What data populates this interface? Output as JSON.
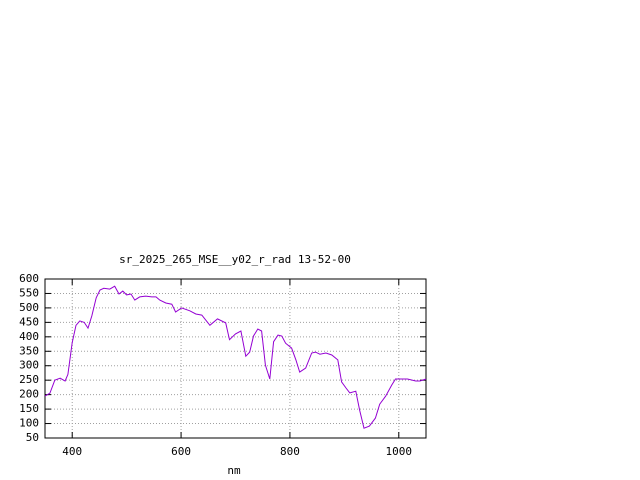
{
  "chart_data": {
    "type": "line",
    "title": "sr_2025_265_MSE__y02_r_rad 13-52-00",
    "x_label": "nm",
    "x": [
      350,
      359,
      368,
      378,
      387,
      392,
      400,
      407,
      414,
      422,
      429,
      436,
      444,
      451,
      458,
      469,
      478,
      486,
      493,
      500,
      508,
      515,
      524,
      535,
      546,
      554,
      561,
      572,
      583,
      590,
      601,
      616,
      627,
      638,
      653,
      667,
      682,
      689,
      700,
      710,
      719,
      726,
      733,
      741,
      748,
      755,
      763,
      770,
      778,
      785,
      792,
      803,
      811,
      818,
      829,
      840,
      847,
      855,
      866,
      877,
      888,
      895,
      903,
      910,
      921,
      928,
      936,
      946,
      957,
      965,
      976,
      987,
      994,
      1005,
      1016,
      1031,
      1039,
      1050
    ],
    "values": [
      195,
      205,
      250,
      257,
      247,
      270,
      380,
      440,
      455,
      450,
      430,
      472,
      535,
      562,
      568,
      565,
      575,
      548,
      558,
      545,
      548,
      527,
      538,
      541,
      538,
      538,
      527,
      517,
      513,
      486,
      500,
      490,
      479,
      475,
      440,
      462,
      448,
      390,
      410,
      420,
      333,
      347,
      403,
      427,
      420,
      302,
      254,
      383,
      406,
      403,
      378,
      361,
      320,
      278,
      292,
      344,
      347,
      340,
      344,
      337,
      320,
      244,
      223,
      206,
      212,
      147,
      84,
      91,
      119,
      167,
      195,
      233,
      254,
      254,
      254,
      247,
      247,
      254
    ],
    "color": "#9400d3",
    "xlim": [
      350,
      1050
    ],
    "xticks": [
      400,
      600,
      800,
      1000
    ],
    "ylim": [
      50,
      600
    ],
    "yticks": [
      50,
      100,
      150,
      200,
      250,
      300,
      350,
      400,
      450,
      500,
      550,
      600
    ],
    "grid": true
  }
}
